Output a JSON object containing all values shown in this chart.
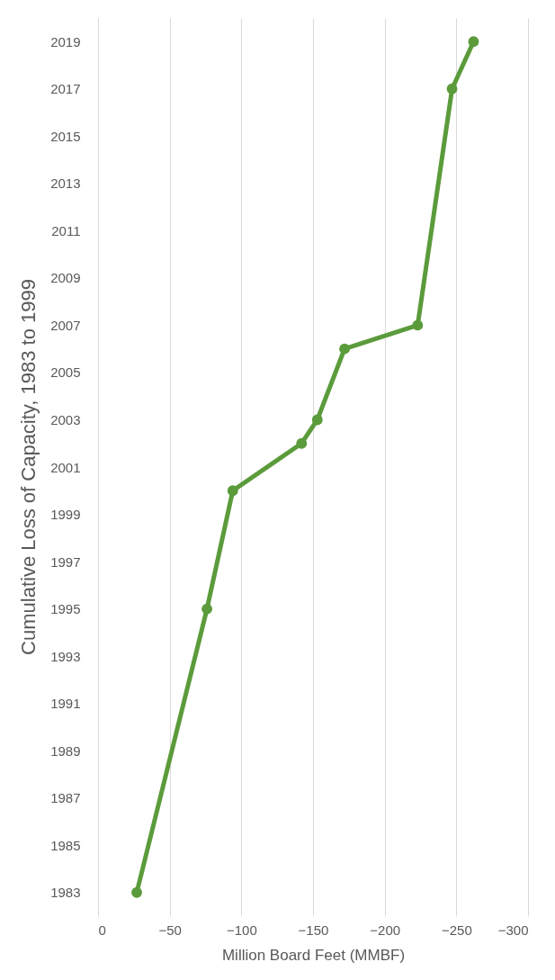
{
  "chart_data": {
    "type": "line",
    "title": "Cumulative Loss of Capacity, 1983 to 1999",
    "xlabel": "Million Board Feet (MMBF)",
    "x": [
      -27,
      -76,
      -94,
      -142,
      -153,
      -172,
      -223,
      -247,
      -262
    ],
    "series": [
      {
        "color": "#5b9b3b",
        "values": [
          1983,
          1995,
          2000,
          2002,
          2003,
          2006,
          2007,
          2017,
          2019
        ]
      }
    ],
    "ylim": [
      1982,
      2020
    ],
    "yticks": [
      1983,
      1985,
      1987,
      1989,
      1991,
      1993,
      1995,
      1997,
      1999,
      2001,
      2003,
      2005,
      2007,
      2009,
      2011,
      2013,
      2015,
      2017,
      2019
    ],
    "xlim": [
      0,
      -300
    ],
    "xticks": [
      0,
      -50,
      -100,
      -150,
      -200,
      -250,
      -300
    ],
    "grid": "x",
    "marker": "circle",
    "line_style": "solid"
  }
}
